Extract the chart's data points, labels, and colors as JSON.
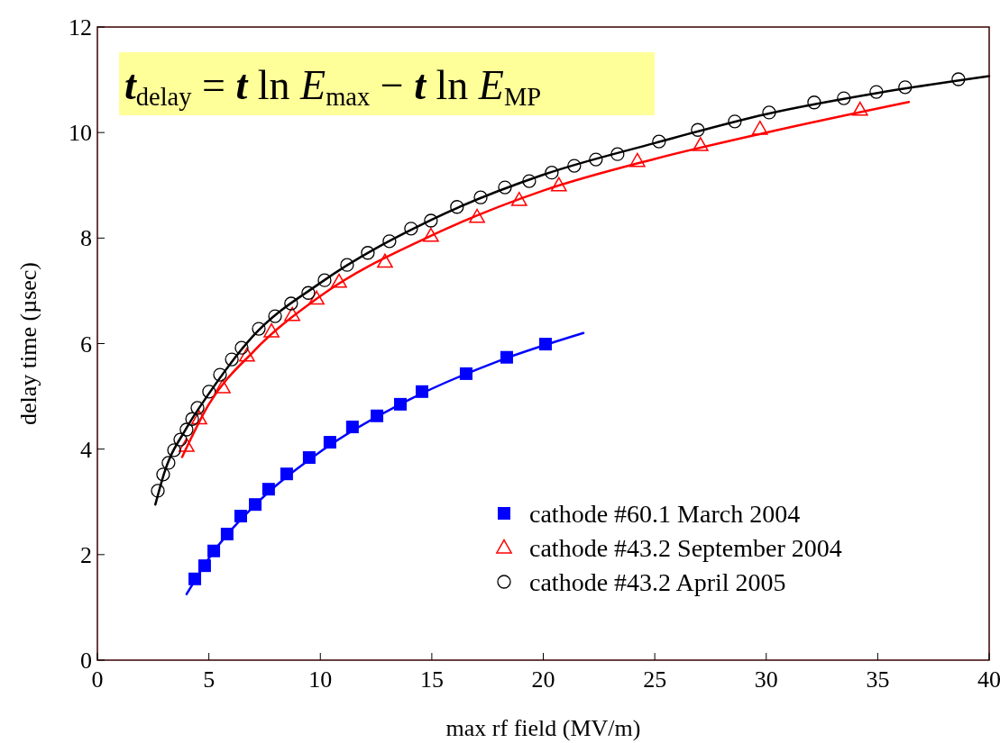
{
  "chart_data": {
    "type": "scatter",
    "xlabel": "max rf field (MV/m)",
    "ylabel": "delay time (µsec)",
    "xlim": [
      0,
      40
    ],
    "xticks": [
      0,
      5,
      10,
      15,
      20,
      25,
      30,
      35,
      40
    ],
    "ylim": [
      0,
      12
    ],
    "yticks": [
      0,
      2,
      4,
      6,
      8,
      10,
      12
    ],
    "grid": false,
    "legend": "bottom right",
    "annotations": [
      "t$_{delay}$ = t ln E$_{max}$ − t ln E$_{MP}$"
    ],
    "series": [
      {
        "name": "cathode #60.1 March 2004",
        "marker": "square",
        "color": "#0000ff",
        "x": [
          4.37,
          4.81,
          5.22,
          5.82,
          6.43,
          7.08,
          7.68,
          8.49,
          9.5,
          10.43,
          11.44,
          12.54,
          13.59,
          14.56,
          16.54,
          18.36,
          20.1
        ],
        "values": [
          1.54,
          1.79,
          2.07,
          2.39,
          2.73,
          2.95,
          3.24,
          3.53,
          3.84,
          4.13,
          4.42,
          4.63,
          4.85,
          5.09,
          5.43,
          5.74,
          5.99
        ]
      },
      {
        "name": "cathode #43.2 September 2004",
        "marker": "triangle",
        "color": "#ff0000",
        "x": [
          4.0,
          4.57,
          5.62,
          6.71,
          7.81,
          8.74,
          9.83,
          10.84,
          12.9,
          14.96,
          17.03,
          18.92,
          20.7,
          24.22,
          27.05,
          29.72,
          34.21
        ],
        "values": [
          4.06,
          4.58,
          5.17,
          5.77,
          6.23,
          6.54,
          6.85,
          7.17,
          7.55,
          8.04,
          8.4,
          8.72,
          9.0,
          9.46,
          9.76,
          10.07,
          10.43
        ]
      },
      {
        "name": "cathode #43.2 April 2005",
        "marker": "circle",
        "color": "#000000",
        "x": [
          2.71,
          2.95,
          3.19,
          3.44,
          3.72,
          4.0,
          4.25,
          4.49,
          5.01,
          5.5,
          6.03,
          6.47,
          7.24,
          7.97,
          8.69,
          9.46,
          10.19,
          11.2,
          12.13,
          13.1,
          14.07,
          14.96,
          16.13,
          17.19,
          18.28,
          19.37,
          20.38,
          21.39,
          22.36,
          23.33,
          25.19,
          26.93,
          28.59,
          30.13,
          32.15,
          33.48,
          34.94,
          36.23,
          38.62
        ],
        "values": [
          3.21,
          3.52,
          3.74,
          3.98,
          4.18,
          4.37,
          4.57,
          4.78,
          5.09,
          5.41,
          5.7,
          5.92,
          6.28,
          6.52,
          6.76,
          6.96,
          7.2,
          7.49,
          7.72,
          7.94,
          8.18,
          8.33,
          8.59,
          8.77,
          8.96,
          9.08,
          9.24,
          9.37,
          9.49,
          9.59,
          9.83,
          10.05,
          10.21,
          10.38,
          10.57,
          10.65,
          10.77,
          10.86,
          11.01
        ]
      },
      {
        "type": "line",
        "marker": "none",
        "color": "#0000ff",
        "x": [
          4.0,
          5,
          7,
          10,
          14,
          18,
          21.8
        ],
        "values": [
          1.25,
          1.93,
          2.91,
          3.95,
          4.94,
          5.67,
          6.2
        ]
      },
      {
        "type": "line",
        "marker": "none",
        "color": "#ff0000",
        "x": [
          3.8,
          5,
          7,
          10,
          15,
          20,
          25,
          30,
          36.4
        ],
        "values": [
          3.85,
          4.85,
          5.85,
          6.9,
          8.05,
          8.9,
          9.5,
          10.0,
          10.58
        ]
      },
      {
        "type": "line",
        "marker": "none",
        "color": "#000000",
        "x": [
          2.6,
          3,
          4,
          5,
          7,
          10,
          15,
          20,
          25,
          30,
          35,
          40
        ],
        "values": [
          2.95,
          3.55,
          4.4,
          5.05,
          6.15,
          7.15,
          8.35,
          9.2,
          9.8,
          10.35,
          10.75,
          11.07
        ]
      }
    ]
  }
}
